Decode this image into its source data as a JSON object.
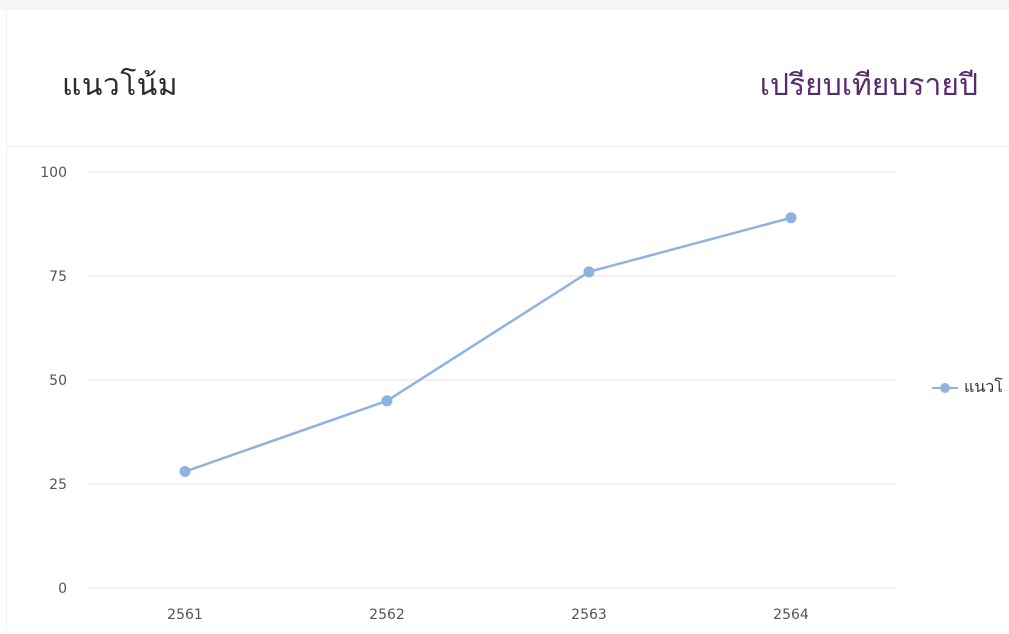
{
  "card": {
    "title": "แนวโน้ม",
    "link_label": "เปรียบเทียบรายปี"
  },
  "colors": {
    "series": "#8db4e0",
    "grid": "#e6e6e6",
    "tick_text": "#555555",
    "link": "#5a2a6e"
  },
  "chart_data": {
    "type": "line",
    "categories": [
      "2561",
      "2562",
      "2563",
      "2564"
    ],
    "series": [
      {
        "name": "แนวโน้ม",
        "values": [
          28,
          45,
          76,
          89
        ]
      }
    ],
    "ylim": [
      0,
      100
    ],
    "yticks": [
      "0",
      "25",
      "50",
      "75",
      "100"
    ],
    "grid": true,
    "legend_position": "right",
    "legend_visible_text": "แนวโ"
  }
}
